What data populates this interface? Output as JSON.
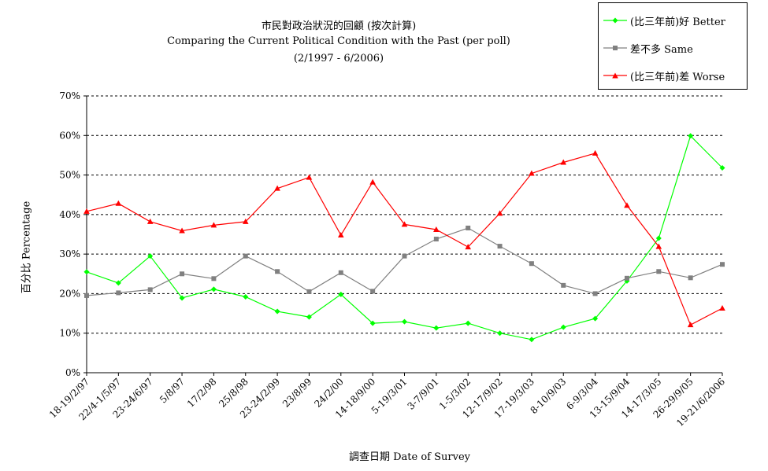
{
  "chart_data": {
    "type": "line",
    "title": "市民對政治狀況的回顧 (按次計算)",
    "subtitle": "Comparing the Current Political Condition with the Past  (per poll)",
    "subtitle2": "(2/1997 - 6/2006)",
    "xlabel": "調查日期 Date of Survey",
    "ylabel": "百分比 Percentage",
    "ylim": [
      0,
      70
    ],
    "yticks": [
      "0%",
      "10%",
      "20%",
      "30%",
      "40%",
      "50%",
      "60%",
      "70%"
    ],
    "grid": true,
    "legend_position": "top-right",
    "categories": [
      "18-19/2/97",
      "22/4-1/5/97",
      "23-24/6/97",
      "5/8/97",
      "17/2/98",
      "25/8/98",
      "23-24/2/99",
      "23/8/99",
      "24/2/00",
      "14-18/9/00",
      "5-19/3/01",
      "3-7/9/01",
      "1-5/3/02",
      "12-17/9/02",
      "17-19/3/03",
      "8-10/9/03",
      "6-9/3/04",
      "13-15/9/04",
      "14-17/3/05",
      "26-29/9/05",
      "19-21/6/2006"
    ],
    "series": [
      {
        "name": "(比三年前)好 Better",
        "color": "#00ff00",
        "marker": "diamond",
        "values": [
          25.5,
          22.7,
          29.5,
          18.9,
          21.1,
          19.2,
          15.5,
          14.1,
          19.8,
          12.5,
          12.9,
          11.3,
          12.5,
          10.0,
          8.4,
          11.5,
          13.7,
          23.2,
          34.0,
          59.9,
          51.8
        ]
      },
      {
        "name": "差不多 Same",
        "color": "#808080",
        "marker": "square",
        "values": [
          19.5,
          20.2,
          21.0,
          25.0,
          23.8,
          29.5,
          25.6,
          20.5,
          25.3,
          20.6,
          29.5,
          33.8,
          36.6,
          32.0,
          27.6,
          22.1,
          20.0,
          23.9,
          25.6,
          24.0,
          27.4
        ]
      },
      {
        "name": "(比三年前)差 Worse",
        "color": "#ff0000",
        "marker": "triangle",
        "values": [
          40.8,
          42.8,
          38.2,
          35.9,
          37.3,
          38.2,
          46.6,
          49.4,
          34.8,
          48.2,
          37.5,
          36.2,
          31.8,
          40.3,
          50.4,
          53.2,
          55.5,
          42.3,
          31.9,
          12.1,
          16.3
        ]
      }
    ]
  }
}
